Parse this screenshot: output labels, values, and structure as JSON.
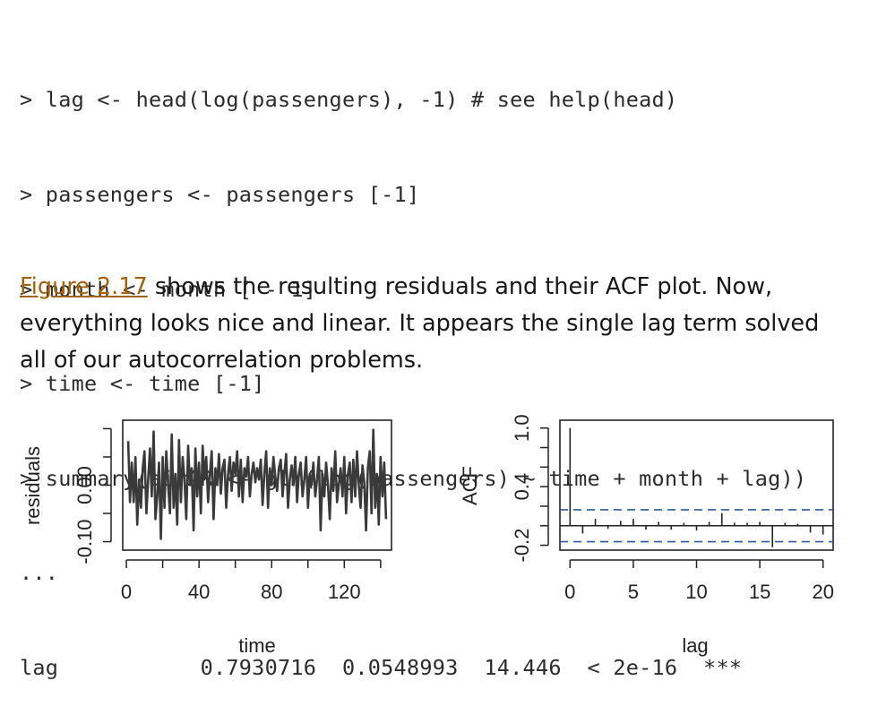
{
  "code": {
    "lines": [
      "> lag <- head(log(passengers), -1) # see help(head)",
      "> passengers <- passengers [-1]",
      "> month <- month [ - 1]",
      "> time <- time [-1]",
      "> summary(airAR <- glm(log(passengers) ~ time + month + lag))",
      "...",
      "lag           0.7930716  0.0548993  14.446  < 2e-16  ***"
    ]
  },
  "prose": {
    "link_text": "Figure 2.17",
    "text_after": " shows the resulting residuals and their ACF plot. Now, everything looks nice and linear. It appears the single lag term solved all of our autocorrelation problems.",
    "link_color": "#a56208"
  },
  "chart_data": [
    {
      "type": "line",
      "xlabel": "time",
      "ylabel": "residuals",
      "xticks": [
        "0",
        "40",
        "80",
        "120"
      ],
      "yticks": [
        "-0.10",
        "0.00"
      ],
      "xlim": [
        -2,
        146
      ],
      "ylim": [
        -0.115,
        0.115
      ],
      "line_color": "#3a3a3a",
      "x": [
        1,
        2,
        3,
        4,
        5,
        6,
        7,
        8,
        9,
        10,
        11,
        12,
        13,
        14,
        15,
        16,
        17,
        18,
        19,
        20,
        21,
        22,
        23,
        24,
        25,
        26,
        27,
        28,
        29,
        30,
        31,
        32,
        33,
        34,
        35,
        36,
        37,
        38,
        39,
        40,
        41,
        42,
        43,
        44,
        45,
        46,
        47,
        48,
        49,
        50,
        51,
        52,
        53,
        54,
        55,
        56,
        57,
        58,
        59,
        60,
        61,
        62,
        63,
        64,
        65,
        66,
        67,
        68,
        69,
        70,
        71,
        72,
        73,
        74,
        75,
        76,
        77,
        78,
        79,
        80,
        81,
        82,
        83,
        84,
        85,
        86,
        87,
        88,
        89,
        90,
        91,
        92,
        93,
        94,
        95,
        96,
        97,
        98,
        99,
        100,
        101,
        102,
        103,
        104,
        105,
        106,
        107,
        108,
        109,
        110,
        111,
        112,
        113,
        114,
        115,
        116,
        117,
        118,
        119,
        120,
        121,
        122,
        123,
        124,
        125,
        126,
        127,
        128,
        129,
        130,
        131,
        132,
        133,
        134,
        135,
        136,
        137,
        138,
        139,
        140,
        141,
        142,
        143
      ],
      "y": [
        0.078,
        -0.03,
        0.04,
        -0.03,
        0.05,
        -0.07,
        0.01,
        -0.04,
        0.03,
        0.06,
        -0.05,
        0.01,
        0.065,
        -0.02,
        0.095,
        -0.06,
        -0.02,
        0.04,
        -0.095,
        0.05,
        -0.04,
        0.06,
        0.0,
        -0.05,
        0.09,
        -0.04,
        0.02,
        -0.07,
        0.08,
        -0.03,
        0.05,
        0.01,
        -0.06,
        0.07,
        0.0,
        0.03,
        -0.08,
        0.065,
        -0.02,
        0.04,
        -0.05,
        0.07,
        0.01,
        0.05,
        -0.03,
        0.02,
        0.06,
        -0.06,
        0.03,
        0.0,
        0.055,
        -0.015,
        0.03,
        0.045,
        -0.04,
        0.02,
        0.05,
        -0.01,
        0.04,
        0.02,
        0.06,
        -0.02,
        0.045,
        -0.03,
        0.03,
        0.015,
        0.05,
        -0.02,
        0.02,
        0.04,
        0.005,
        0.03,
        0.01,
        0.045,
        -0.035,
        0.02,
        0.06,
        -0.04,
        0.03,
        0.0,
        0.05,
        0.015,
        -0.01,
        0.03,
        0.045,
        -0.02,
        0.02,
        0.055,
        -0.04,
        0.01,
        0.035,
        0.0,
        0.05,
        -0.03,
        0.02,
        0.04,
        -0.02,
        0.01,
        0.05,
        -0.04,
        0.02,
        0.0,
        0.04,
        -0.02,
        0.01,
        0.05,
        -0.08,
        0.02,
        -0.02,
        0.04,
        0.0,
        -0.06,
        0.03,
        -0.01,
        0.06,
        -0.03,
        0.0,
        0.03,
        -0.02,
        0.05,
        -0.05,
        0.02,
        0.04,
        -0.03,
        0.045,
        -0.02,
        0.06,
        0.0,
        -0.04,
        0.035,
        0.005,
        -0.08,
        0.03,
        0.06,
        -0.05,
        0.098,
        -0.04,
        0.02,
        -0.07,
        0.05,
        -0.02,
        0.04,
        -0.06
      ]
    },
    {
      "type": "bar",
      "xlabel": "lag",
      "ylabel": "ACF",
      "xticks": [
        "0",
        "5",
        "10",
        "15",
        "20"
      ],
      "yticks": [
        "-0.2",
        "0.4",
        "1.0"
      ],
      "xlim": [
        -0.8,
        20.8
      ],
      "ylim": [
        -0.25,
        1.08
      ],
      "ci": 0.163,
      "ci_color": "#2e59a8",
      "lags": [
        0,
        1,
        2,
        3,
        4,
        5,
        6,
        7,
        8,
        9,
        10,
        11,
        12,
        13,
        14,
        15,
        16,
        17,
        18,
        19,
        20
      ],
      "values": [
        1.0,
        -0.08,
        0.07,
        -0.03,
        0.05,
        0.07,
        -0.04,
        0.04,
        -0.04,
        0.03,
        -0.05,
        0.04,
        0.13,
        0.03,
        0.03,
        0.04,
        -0.22,
        0.03,
        0.02,
        -0.07,
        -0.09
      ]
    }
  ]
}
